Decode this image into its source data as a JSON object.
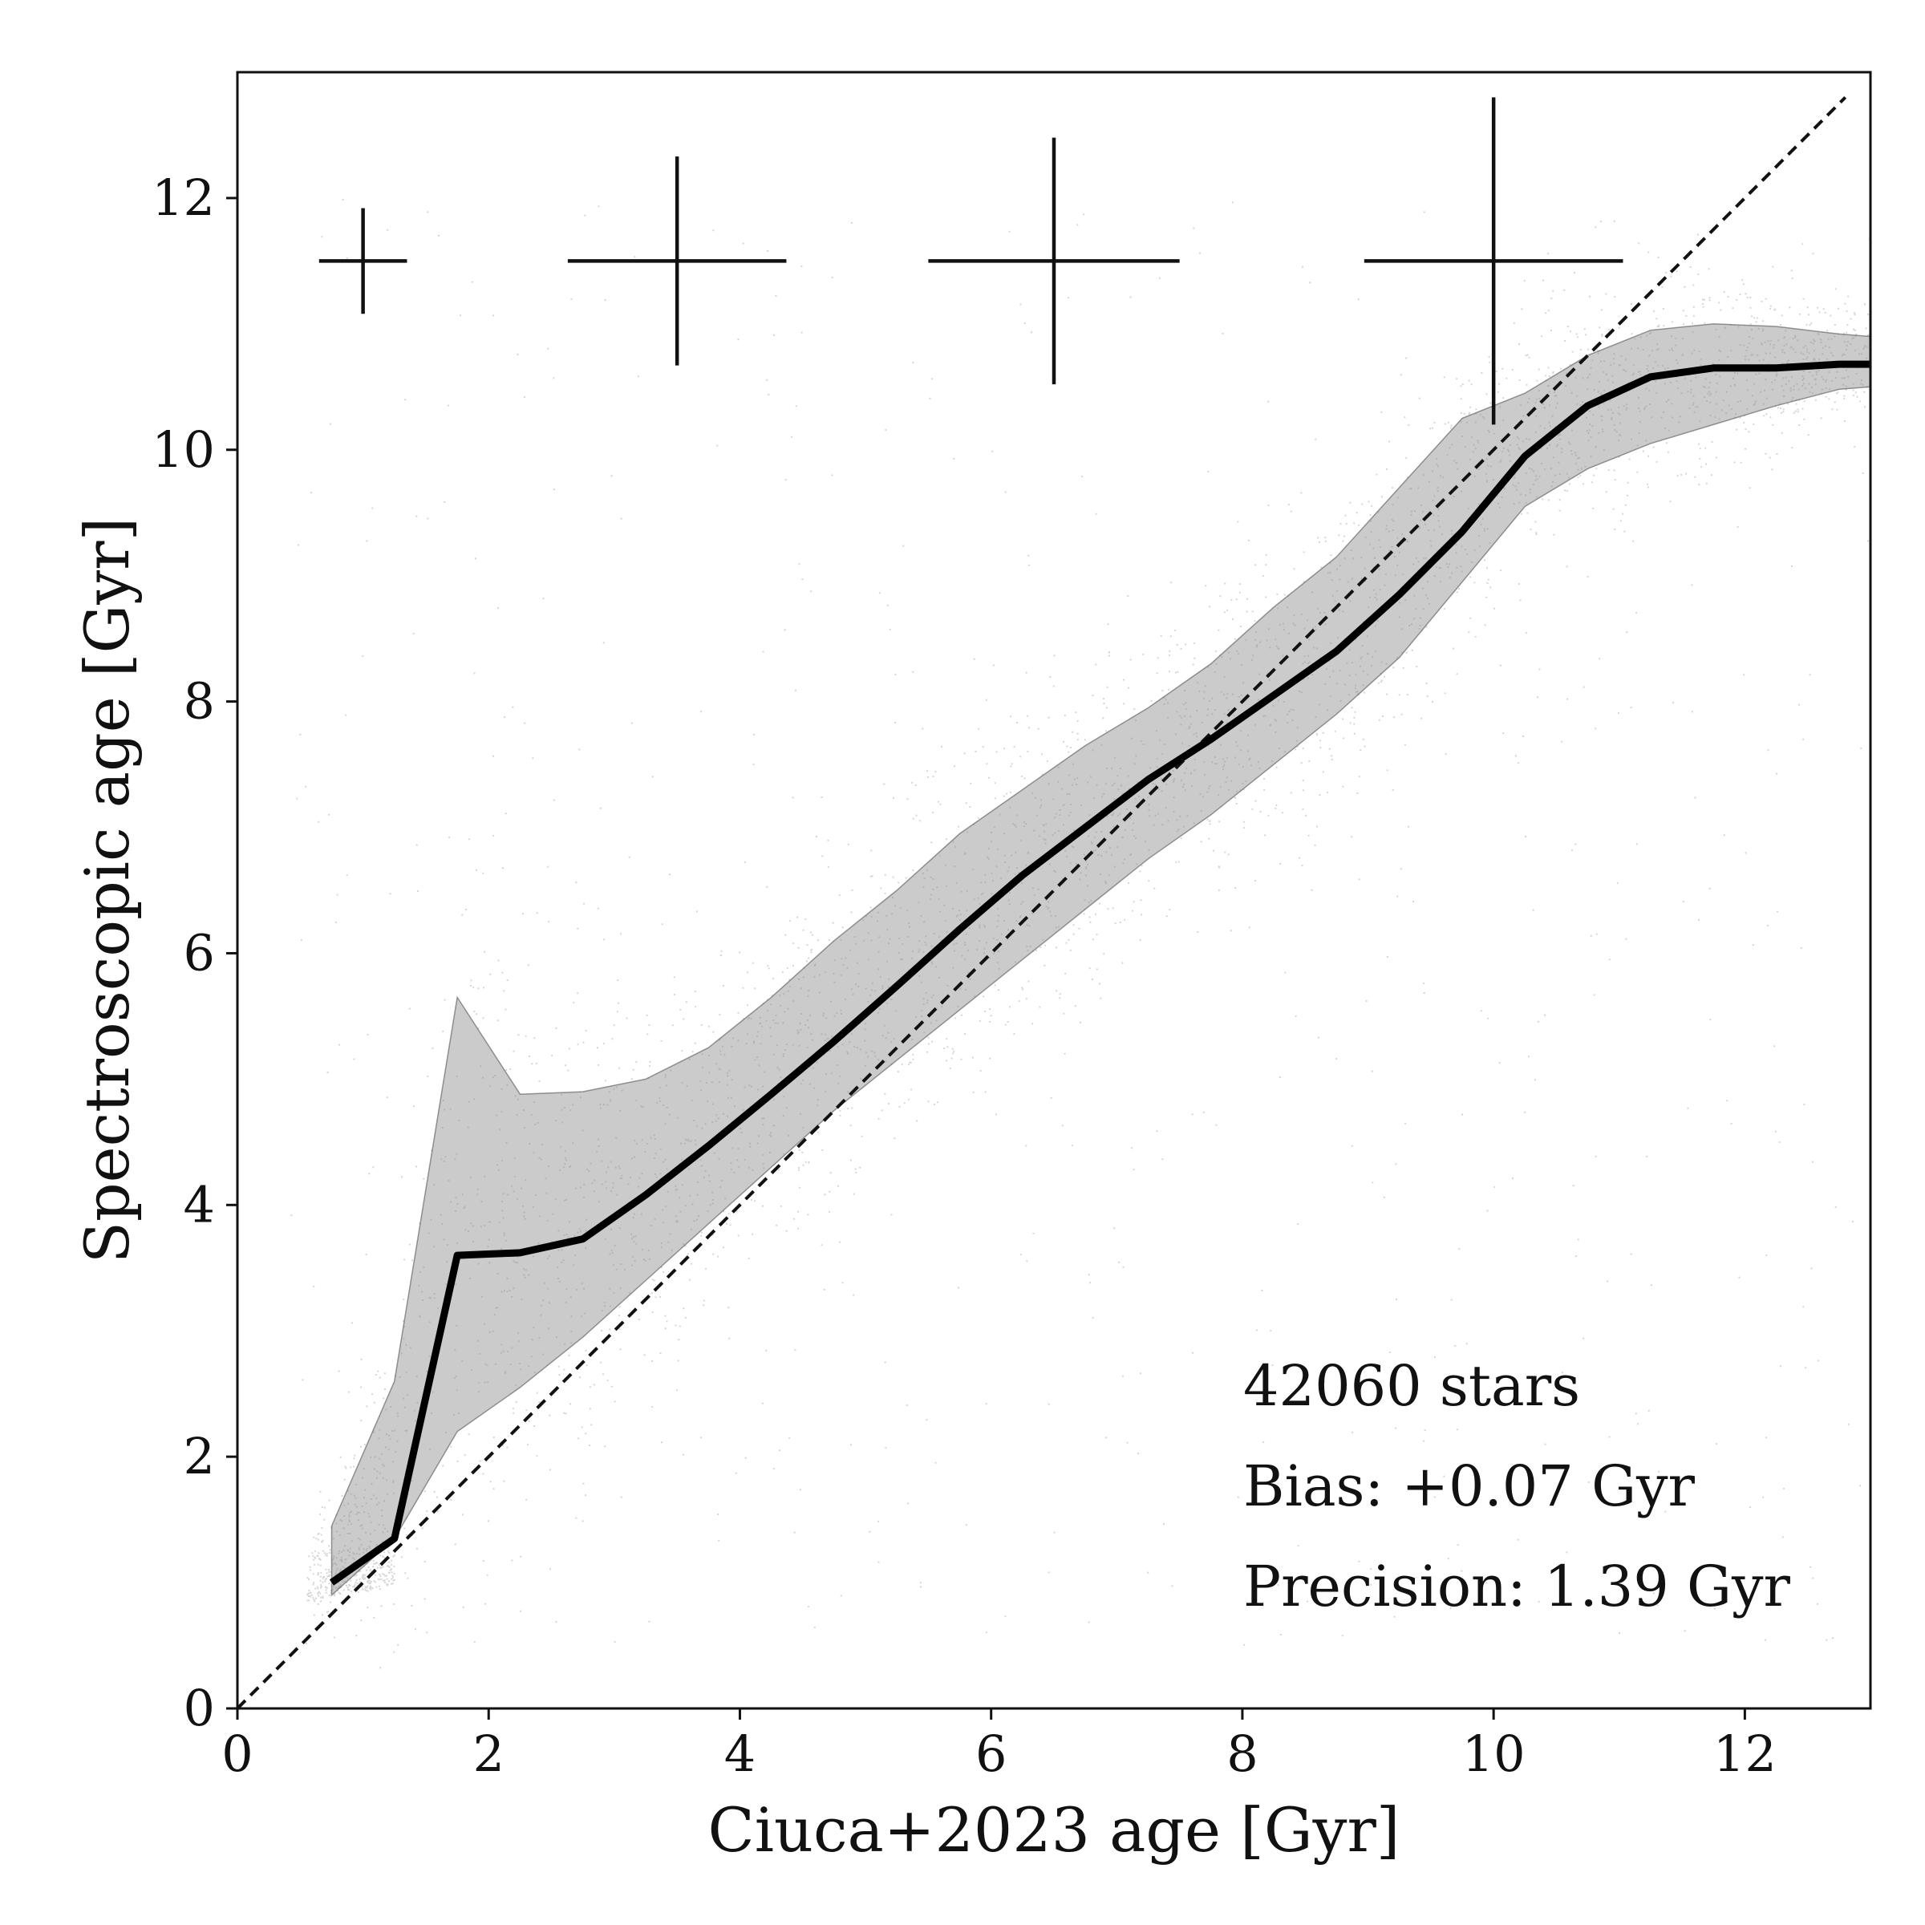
{
  "chart_data": {
    "type": "scatter",
    "xlabel": "Ciuca+2023 age [Gyr]",
    "ylabel": "Spectroscopic age [Gyr]",
    "xlim": [
      0,
      13
    ],
    "ylim": [
      0,
      13
    ],
    "xticks": [
      0,
      2,
      4,
      6,
      8,
      10,
      12
    ],
    "yticks": [
      0,
      2,
      4,
      6,
      8,
      10,
      12
    ],
    "grid": false,
    "legend": "none",
    "colors": {
      "points": "#000000",
      "band": "#8c8c8c",
      "line": "#000000"
    },
    "annotations": [
      "42060 stars",
      "Bias: +0.07 Gyr",
      "Precision: 1.39 Gyr"
    ],
    "one_to_one_line": {
      "style": "dashed",
      "x": [
        0,
        12.8
      ],
      "y": [
        0,
        12.8
      ]
    },
    "running_median": {
      "x": [
        0.75,
        1.25,
        1.75,
        2.25,
        2.75,
        3.25,
        3.75,
        4.25,
        4.75,
        5.25,
        5.75,
        6.25,
        6.75,
        7.25,
        7.75,
        8.25,
        8.75,
        9.25,
        9.75,
        10.25,
        10.75,
        11.25,
        11.75,
        12.25,
        12.75,
        13.0
      ],
      "y": [
        1.0,
        1.35,
        3.6,
        3.62,
        3.73,
        4.08,
        4.47,
        4.88,
        5.3,
        5.74,
        6.19,
        6.62,
        7.0,
        7.38,
        7.7,
        8.05,
        8.4,
        8.85,
        9.35,
        9.95,
        10.35,
        10.58,
        10.65,
        10.65,
        10.68,
        10.68
      ]
    },
    "scatter_band": {
      "x": [
        0.75,
        1.25,
        1.75,
        2.25,
        2.75,
        3.25,
        3.75,
        4.25,
        4.75,
        5.25,
        5.75,
        6.25,
        6.75,
        7.25,
        7.75,
        8.25,
        8.75,
        9.25,
        9.75,
        10.25,
        10.75,
        11.25,
        11.75,
        12.25,
        12.75,
        13.0
      ],
      "lower": [
        0.9,
        1.35,
        2.2,
        2.55,
        2.95,
        3.4,
        3.85,
        4.3,
        4.75,
        5.15,
        5.55,
        5.95,
        6.35,
        6.75,
        7.1,
        7.5,
        7.9,
        8.35,
        8.95,
        9.55,
        9.85,
        10.05,
        10.2,
        10.35,
        10.48,
        10.5
      ],
      "upper": [
        1.45,
        2.6,
        5.65,
        4.88,
        4.9,
        5.0,
        5.25,
        5.65,
        6.1,
        6.5,
        6.95,
        7.3,
        7.65,
        7.95,
        8.3,
        8.75,
        9.15,
        9.7,
        10.25,
        10.45,
        10.75,
        10.95,
        11.0,
        10.98,
        10.92,
        10.9
      ]
    },
    "error_crosses": [
      {
        "x": 1.0,
        "y": 11.5,
        "xerr": 0.35,
        "yerr": 0.42
      },
      {
        "x": 3.5,
        "y": 11.5,
        "xerr": 0.87,
        "yerr": 0.83
      },
      {
        "x": 6.5,
        "y": 11.5,
        "xerr": 1.0,
        "yerr": 0.98
      },
      {
        "x": 10.0,
        "y": 11.5,
        "xerr": 1.03,
        "yerr": 1.3
      }
    ]
  }
}
